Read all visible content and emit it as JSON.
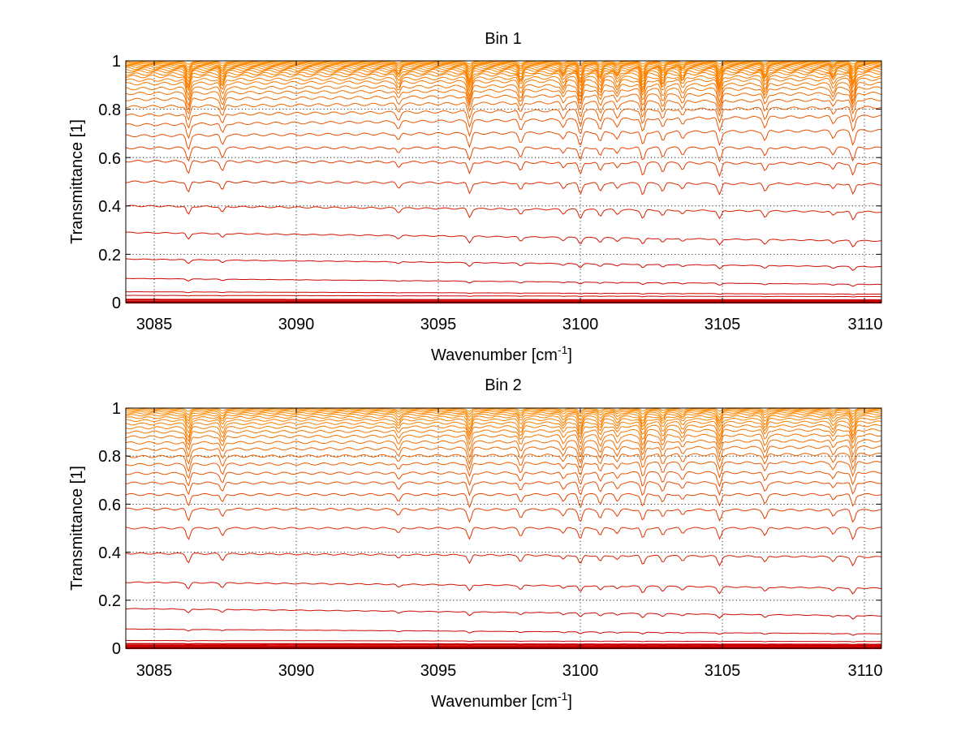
{
  "chart_data": [
    {
      "type": "line",
      "title": "Bin 1",
      "xlabel_base": "Wavenumber [cm",
      "xlabel_exp": "-1",
      "xlabel_close": "]",
      "ylabel": "Transmittance [1]",
      "xlim": [
        3084.0,
        3110.6
      ],
      "ylim": [
        0,
        1
      ],
      "xticks": [
        3085,
        3090,
        3095,
        3100,
        3105,
        3110
      ],
      "xtick_labels": [
        "3085",
        "3090",
        "3095",
        "3100",
        "3105",
        "3110"
      ],
      "yticks": [
        0,
        0.2,
        0.4,
        0.6,
        0.8,
        1
      ],
      "ytick_labels": [
        "0",
        "0.2",
        "0.4",
        "0.6",
        "0.8",
        "1"
      ],
      "grid": "dotted",
      "absorption_lines_cm1": [
        3086.2,
        3087.4,
        3093.6,
        3096.1,
        3097.9,
        3099.4,
        3100.0,
        3100.7,
        3101.3,
        3102.2,
        3102.9,
        3103.6,
        3104.9,
        3106.5,
        3108.9,
        3109.6
      ],
      "series": [
        {
          "name": "s01",
          "level_left": 1.0,
          "level_right": 1.0,
          "depth": 0.0
        },
        {
          "name": "s02",
          "level_left": 0.996,
          "level_right": 0.997,
          "depth": 0.01
        },
        {
          "name": "s03",
          "level_left": 0.992,
          "level_right": 0.994,
          "depth": 0.018
        },
        {
          "name": "s04",
          "level_left": 0.988,
          "level_right": 0.991,
          "depth": 0.026
        },
        {
          "name": "s05",
          "level_left": 0.984,
          "level_right": 0.988,
          "depth": 0.034
        },
        {
          "name": "s06",
          "level_left": 0.98,
          "level_right": 0.985,
          "depth": 0.042
        },
        {
          "name": "s07",
          "level_left": 0.975,
          "level_right": 0.981,
          "depth": 0.05
        },
        {
          "name": "s08",
          "level_left": 0.969,
          "level_right": 0.976,
          "depth": 0.056
        },
        {
          "name": "s09",
          "level_left": 0.962,
          "level_right": 0.971,
          "depth": 0.06
        },
        {
          "name": "s10",
          "level_left": 0.955,
          "level_right": 0.966,
          "depth": 0.062
        },
        {
          "name": "s11",
          "level_left": 0.945,
          "level_right": 0.958,
          "depth": 0.064
        },
        {
          "name": "s12",
          "level_left": 0.935,
          "level_right": 0.95,
          "depth": 0.066
        },
        {
          "name": "s13",
          "level_left": 0.92,
          "level_right": 0.937,
          "depth": 0.068
        },
        {
          "name": "s14",
          "level_left": 0.905,
          "level_right": 0.924,
          "depth": 0.068
        },
        {
          "name": "s15",
          "level_left": 0.885,
          "level_right": 0.906,
          "depth": 0.068
        },
        {
          "name": "s16",
          "level_left": 0.865,
          "level_right": 0.888,
          "depth": 0.066
        },
        {
          "name": "s17",
          "level_left": 0.84,
          "level_right": 0.866,
          "depth": 0.064
        },
        {
          "name": "s18",
          "level_left": 0.81,
          "level_right": 0.84,
          "depth": 0.062
        },
        {
          "name": "s19",
          "level_left": 0.775,
          "level_right": 0.808,
          "depth": 0.06
        },
        {
          "name": "s20",
          "level_left": 0.735,
          "level_right": 0.772,
          "depth": 0.058
        },
        {
          "name": "s21",
          "level_left": 0.69,
          "level_right": 0.712,
          "depth": 0.055
        },
        {
          "name": "s22",
          "level_left": 0.64,
          "level_right": 0.64,
          "depth": 0.052
        },
        {
          "name": "s23",
          "level_left": 0.585,
          "level_right": 0.575,
          "depth": 0.05
        },
        {
          "name": "s24",
          "level_left": 0.5,
          "level_right": 0.49,
          "depth": 0.045
        },
        {
          "name": "s25",
          "level_left": 0.4,
          "level_right": 0.375,
          "depth": 0.035
        },
        {
          "name": "s26",
          "level_left": 0.29,
          "level_right": 0.255,
          "depth": 0.025
        },
        {
          "name": "s27",
          "level_left": 0.18,
          "level_right": 0.148,
          "depth": 0.015
        },
        {
          "name": "s28",
          "level_left": 0.1,
          "level_right": 0.075,
          "depth": 0.008
        },
        {
          "name": "s29",
          "level_left": 0.045,
          "level_right": 0.035,
          "depth": 0.003
        },
        {
          "name": "s30",
          "level_left": 0.03,
          "level_right": 0.025,
          "depth": 0.002
        },
        {
          "name": "s31",
          "level_left": 0.012,
          "level_right": 0.01,
          "depth": 0.0
        },
        {
          "name": "s32",
          "level_left": 0.004,
          "level_right": 0.004,
          "depth": 0.0
        },
        {
          "name": "s33",
          "level_left": 0.0,
          "level_right": 0.0,
          "depth": 0.0
        }
      ]
    },
    {
      "type": "line",
      "title": "Bin 2",
      "xlabel_base": "Wavenumber [cm",
      "xlabel_exp": "-1",
      "xlabel_close": "]",
      "ylabel": "Transmittance [1]",
      "xlim": [
        3084.0,
        3110.6
      ],
      "ylim": [
        0,
        1
      ],
      "xticks": [
        3085,
        3090,
        3095,
        3100,
        3105,
        3110
      ],
      "xtick_labels": [
        "3085",
        "3090",
        "3095",
        "3100",
        "3105",
        "3110"
      ],
      "yticks": [
        0,
        0.2,
        0.4,
        0.6,
        0.8,
        1
      ],
      "ytick_labels": [
        "0",
        "0.2",
        "0.4",
        "0.6",
        "0.8",
        "1"
      ],
      "grid": "dotted",
      "absorption_lines_cm1": [
        3086.2,
        3087.4,
        3093.6,
        3096.1,
        3097.9,
        3099.4,
        3100.0,
        3100.7,
        3101.3,
        3102.2,
        3102.9,
        3103.6,
        3104.9,
        3106.5,
        3108.9,
        3109.6
      ],
      "series": [
        {
          "name": "s01",
          "level_left": 1.0,
          "level_right": 1.0,
          "depth": 0.0
        },
        {
          "name": "s02",
          "level_left": 0.996,
          "level_right": 0.997,
          "depth": 0.01
        },
        {
          "name": "s03",
          "level_left": 0.991,
          "level_right": 0.993,
          "depth": 0.018
        },
        {
          "name": "s04",
          "level_left": 0.985,
          "level_right": 0.988,
          "depth": 0.026
        },
        {
          "name": "s05",
          "level_left": 0.978,
          "level_right": 0.982,
          "depth": 0.034
        },
        {
          "name": "s06",
          "level_left": 0.97,
          "level_right": 0.975,
          "depth": 0.04
        },
        {
          "name": "s07",
          "level_left": 0.96,
          "level_right": 0.966,
          "depth": 0.046
        },
        {
          "name": "s08",
          "level_left": 0.948,
          "level_right": 0.955,
          "depth": 0.05
        },
        {
          "name": "s09",
          "level_left": 0.934,
          "level_right": 0.942,
          "depth": 0.054
        },
        {
          "name": "s10",
          "level_left": 0.918,
          "level_right": 0.927,
          "depth": 0.056
        },
        {
          "name": "s11",
          "level_left": 0.9,
          "level_right": 0.909,
          "depth": 0.058
        },
        {
          "name": "s12",
          "level_left": 0.88,
          "level_right": 0.888,
          "depth": 0.06
        },
        {
          "name": "s13",
          "level_left": 0.855,
          "level_right": 0.864,
          "depth": 0.06
        },
        {
          "name": "s14",
          "level_left": 0.828,
          "level_right": 0.838,
          "depth": 0.06
        },
        {
          "name": "s15",
          "level_left": 0.798,
          "level_right": 0.808,
          "depth": 0.058
        },
        {
          "name": "s16",
          "level_left": 0.765,
          "level_right": 0.774,
          "depth": 0.056
        },
        {
          "name": "s17",
          "level_left": 0.728,
          "level_right": 0.732,
          "depth": 0.054
        },
        {
          "name": "s18",
          "level_left": 0.688,
          "level_right": 0.69,
          "depth": 0.052
        },
        {
          "name": "s19",
          "level_left": 0.64,
          "level_right": 0.64,
          "depth": 0.05
        },
        {
          "name": "s20",
          "level_left": 0.58,
          "level_right": 0.575,
          "depth": 0.048
        },
        {
          "name": "s21",
          "level_left": 0.5,
          "level_right": 0.5,
          "depth": 0.044
        },
        {
          "name": "s22",
          "level_left": 0.395,
          "level_right": 0.38,
          "depth": 0.036
        },
        {
          "name": "s23",
          "level_left": 0.275,
          "level_right": 0.25,
          "depth": 0.026
        },
        {
          "name": "s24",
          "level_left": 0.165,
          "level_right": 0.135,
          "depth": 0.016
        },
        {
          "name": "s25",
          "level_left": 0.08,
          "level_right": 0.06,
          "depth": 0.007
        },
        {
          "name": "s26",
          "level_left": 0.032,
          "level_right": 0.028,
          "depth": 0.002
        },
        {
          "name": "s27",
          "level_left": 0.018,
          "level_right": 0.015,
          "depth": 0.001
        },
        {
          "name": "s28",
          "level_left": 0.01,
          "level_right": 0.008,
          "depth": 0.0
        },
        {
          "name": "s29",
          "level_left": 0.004,
          "level_right": 0.004,
          "depth": 0.0
        },
        {
          "name": "s30",
          "level_left": 0.0,
          "level_right": 0.0,
          "depth": 0.0
        }
      ]
    }
  ],
  "colors": {
    "high": "#1f3fbf",
    "upper": "#ff8c00",
    "lower": "#cc0000",
    "axes": "#000000",
    "grid": "#000000"
  }
}
